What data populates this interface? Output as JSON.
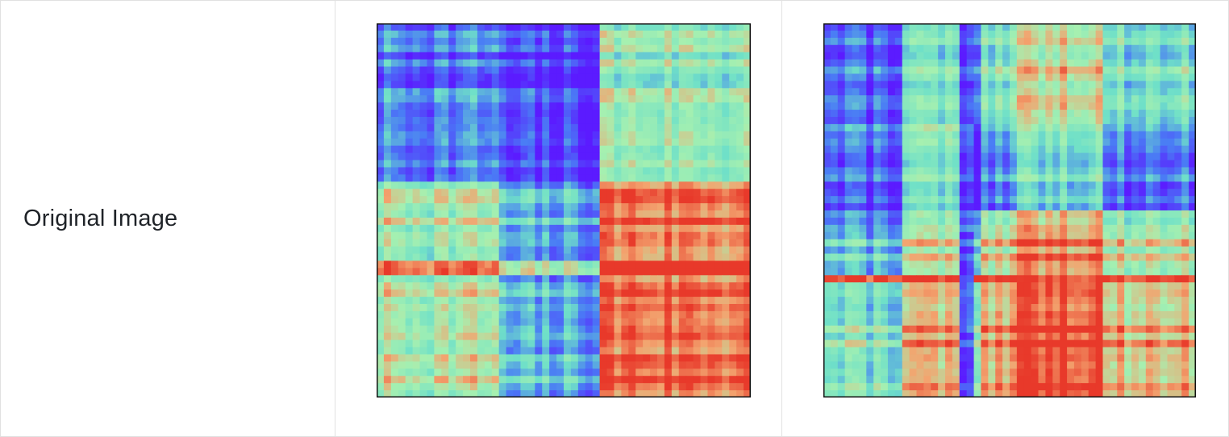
{
  "row_label": "Original Image",
  "chart_data": [
    {
      "type": "heatmap",
      "colormap": "rainbow",
      "colorscale": [
        "#5b1bff",
        "#4a7df5",
        "#6fe0c8",
        "#a6f0b0",
        "#f3a46f",
        "#e8392a"
      ],
      "value_range": [
        0,
        1
      ],
      "rows": 52,
      "cols": 52,
      "axes_ticks": "none",
      "block_boundaries": [
        0.3,
        0.58
      ],
      "description_of_values": "block-structured similarity matrix; low values (violet/blue) in upper-left block, high values (red) in lower-right block, mixed green/yellow elsewhere"
    },
    {
      "type": "heatmap",
      "colormap": "rainbow",
      "colorscale": [
        "#5b1bff",
        "#4a7df5",
        "#6fe0c8",
        "#a6f0b0",
        "#f3a46f",
        "#e8392a"
      ],
      "value_range": [
        0,
        1
      ],
      "rows": 52,
      "cols": 52,
      "axes_ticks": "none",
      "block_boundaries": [
        0.25,
        0.5,
        0.75
      ],
      "description_of_values": "block-structured similarity matrix; low values (violet/blue) in left and middle bands, high values (red) along horizontal band near 63% and lower-right region"
    }
  ]
}
